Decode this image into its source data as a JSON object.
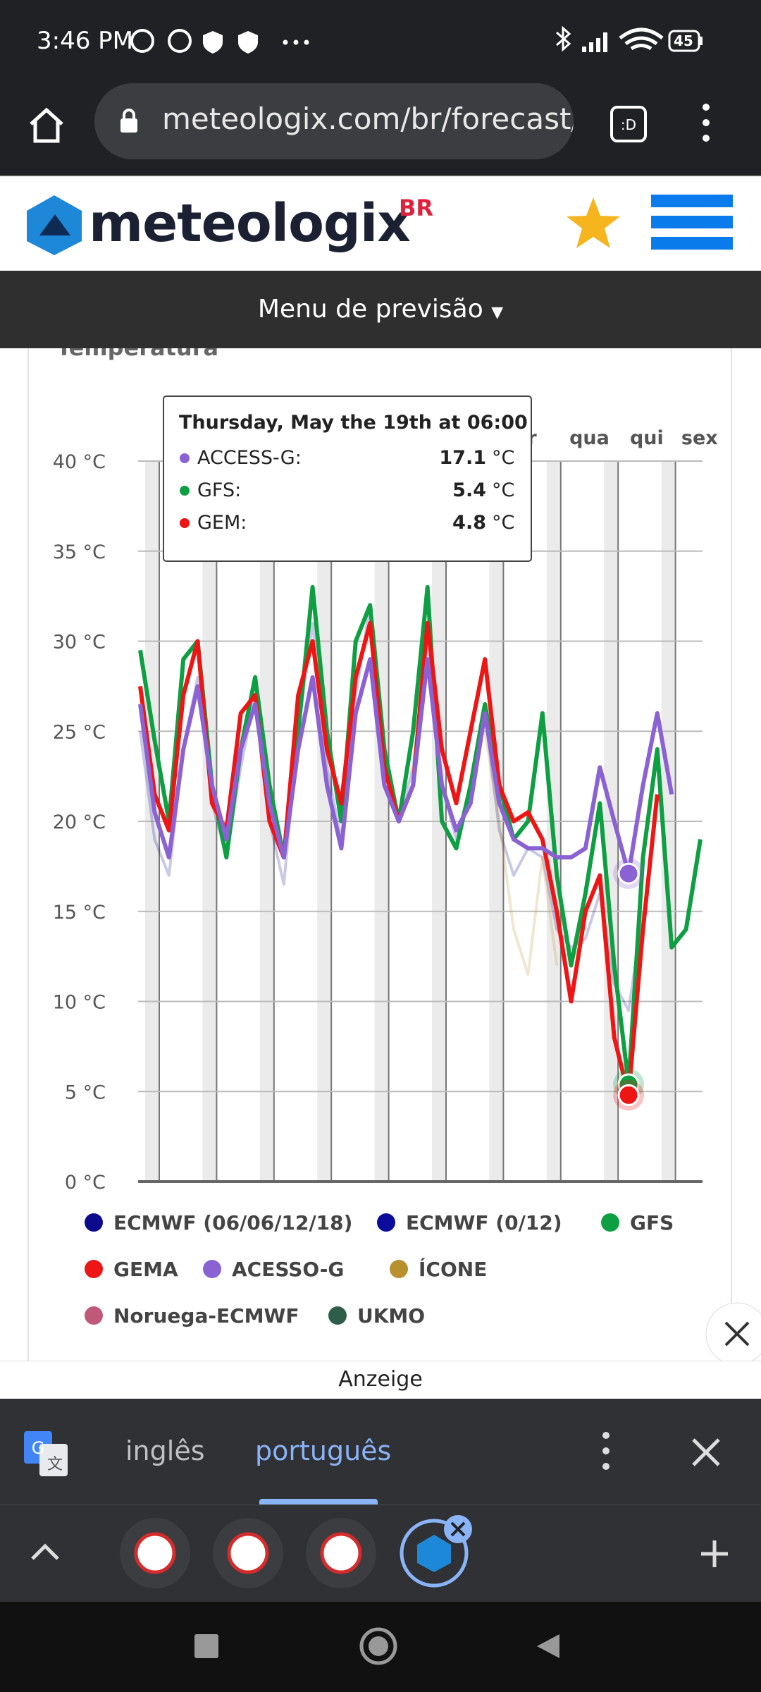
{
  "status_bar": {
    "time": "3:46 PM",
    "battery": "45"
  },
  "browser": {
    "url": "meteologix.com/br/forecast/"
  },
  "site": {
    "brand": "meteologix",
    "brand_suffix": "BR",
    "menu": "Menu de previsão"
  },
  "chart_data": {
    "type": "line",
    "title": "Temperatura",
    "day_labels": [
      null,
      null,
      null,
      null,
      null,
      null,
      null,
      "r",
      "qua",
      "qui",
      "sex"
    ],
    "ylim": [
      0,
      40
    ],
    "yticks": [
      {
        "value": 0,
        "label": "0 °C"
      },
      {
        "value": 5,
        "label": "5 °C"
      },
      {
        "value": 10,
        "label": "10 °C"
      },
      {
        "value": 15,
        "label": "15 °C"
      },
      {
        "value": 20,
        "label": "20 °C"
      },
      {
        "value": 25,
        "label": "25 °C"
      },
      {
        "value": 30,
        "label": "30 °C"
      },
      {
        "value": 35,
        "label": "35 °C"
      },
      {
        "value": 40,
        "label": "40 °C"
      }
    ],
    "grid": true,
    "series": [
      {
        "name": "ECMWF (06/06/12/18)",
        "color": "#0b0b8c",
        "faded": true,
        "values": [
          25,
          19,
          17,
          24,
          28,
          21,
          18,
          23,
          27,
          20,
          16.5,
          25,
          31,
          23,
          19,
          27,
          32,
          23,
          20,
          23,
          30,
          22,
          19,
          22,
          26,
          19.5,
          17,
          18.5,
          18,
          14,
          13,
          13.5,
          16,
          11,
          9.5,
          15,
          null,
          null,
          null,
          null
        ]
      },
      {
        "name": "ECMWF (0/12)",
        "color": "#0b0b9c",
        "faded": true,
        "values": [
          null,
          null,
          null,
          null,
          null,
          null,
          null,
          null,
          null,
          null,
          null,
          null,
          null,
          null,
          null,
          null,
          null,
          null,
          null,
          null,
          null,
          null,
          null,
          null,
          null,
          null,
          null,
          null,
          null,
          null,
          null,
          null,
          null,
          null,
          null,
          null,
          null,
          null,
          null,
          null
        ]
      },
      {
        "name": "GFS",
        "color": "#0d9f42",
        "faded": false,
        "values": [
          29.5,
          24.5,
          20,
          29,
          30,
          22,
          18,
          24,
          28,
          22,
          18,
          25,
          33,
          25,
          20,
          30,
          32,
          24,
          20,
          25,
          33,
          20,
          18.5,
          22,
          26.5,
          22,
          19,
          20,
          26,
          17,
          12,
          16,
          21,
          12,
          5.4,
          18,
          24,
          13,
          14,
          19
        ]
      },
      {
        "name": "GEMA",
        "color": "#ee1515",
        "faded": false,
        "values": [
          27.5,
          21.5,
          19.5,
          27,
          30,
          21,
          19.5,
          26,
          27,
          20,
          18,
          27,
          30,
          24,
          21,
          28,
          31,
          23,
          20,
          22,
          31,
          24,
          21,
          25,
          29,
          22,
          20,
          20.5,
          19,
          15,
          10,
          15,
          17,
          8,
          4.8,
          14,
          21.5,
          null,
          null,
          null
        ]
      },
      {
        "name": "ACESSO-G",
        "color": "#8b62d3",
        "faded": false,
        "values": [
          26.5,
          20.5,
          18,
          24,
          27.5,
          22,
          19,
          24,
          26.5,
          21,
          18,
          24,
          28,
          22,
          18.5,
          26,
          29,
          22,
          20,
          22,
          29,
          22,
          19.5,
          21,
          26,
          21,
          19,
          18.5,
          18.5,
          18,
          18,
          18.5,
          23,
          20,
          17.1,
          22,
          26,
          21.5,
          null,
          null
        ]
      },
      {
        "name": "ÍCONE",
        "color": "#b8902e",
        "faded": true,
        "values": [
          null,
          null,
          null,
          null,
          null,
          null,
          null,
          null,
          null,
          null,
          null,
          null,
          null,
          null,
          null,
          null,
          null,
          null,
          null,
          null,
          null,
          null,
          null,
          null,
          25,
          20,
          14,
          11.5,
          18,
          12,
          null,
          null,
          null,
          null,
          null,
          null,
          null,
          null,
          null,
          null
        ]
      },
      {
        "name": "Noruega-ECMWF",
        "color": "#c0587a",
        "faded": true,
        "values": [
          null,
          null,
          null,
          null,
          null,
          null,
          null,
          null,
          null,
          null,
          null,
          null,
          null,
          null,
          null,
          null,
          null,
          null,
          null,
          null,
          null,
          null,
          null,
          null,
          null,
          null,
          null,
          null,
          null,
          null,
          null,
          null,
          null,
          null,
          null,
          null,
          null,
          null,
          null,
          null
        ]
      },
      {
        "name": "UKMO",
        "color": "#2e5e4a",
        "faded": true,
        "values": [
          null,
          null,
          null,
          null,
          null,
          null,
          null,
          null,
          null,
          null,
          null,
          null,
          null,
          null,
          null,
          null,
          null,
          null,
          null,
          null,
          null,
          null,
          null,
          null,
          null,
          null,
          null,
          null,
          null,
          null,
          null,
          null,
          null,
          null,
          null,
          null,
          null,
          null,
          null,
          null
        ]
      }
    ]
  },
  "tooltip": {
    "title": "Thursday, May the 19th at 06:00",
    "rows": [
      {
        "name": "ACCESS-G:",
        "value": "17.1",
        "unit": "°C",
        "color": "#8b62d3"
      },
      {
        "name": "GFS:",
        "value": "5.4",
        "unit": "°C",
        "color": "#0d9f42"
      },
      {
        "name": "GEM:",
        "value": "4.8",
        "unit": "°C",
        "color": "#ee1515"
      }
    ]
  },
  "ad_label": "Anzeige",
  "translate_bar": {
    "lang_from": "inglês",
    "lang_to": "português"
  }
}
